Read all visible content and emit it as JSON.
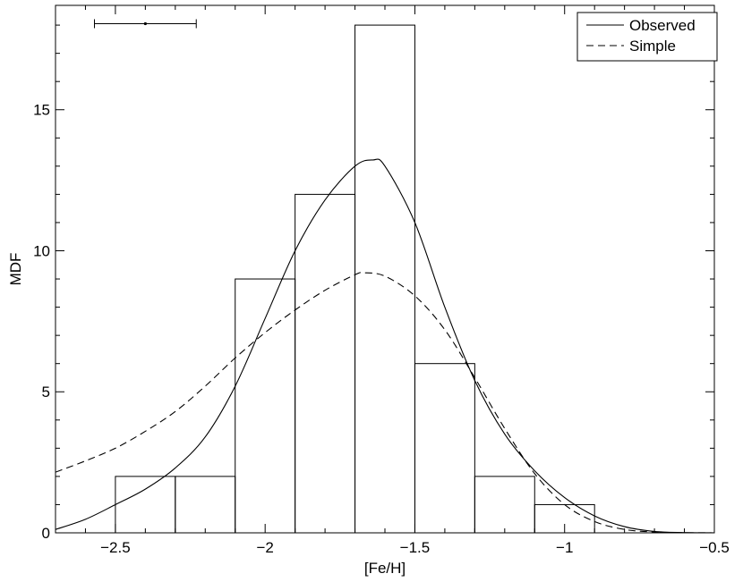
{
  "chart_data": {
    "type": "bar",
    "title": "",
    "xlabel": "[Fe/H]",
    "ylabel": "MDF",
    "xlim": [
      -2.7,
      -0.5
    ],
    "ylim": [
      0,
      18.7
    ],
    "grid": false,
    "legend_position": "top-right",
    "x_major_ticks": [
      -2.5,
      -2.0,
      -1.5,
      -1.0,
      -0.5
    ],
    "x_tick_labels": [
      "−2.5",
      "−2",
      "−1.5",
      "−1",
      "−0.5"
    ],
    "y_major_ticks": [
      0,
      5,
      10,
      15
    ],
    "y_tick_labels": [
      "0",
      "5",
      "10",
      "15"
    ],
    "histogram": {
      "bins": [
        {
          "x0": -2.5,
          "x1": -2.3,
          "count": 2
        },
        {
          "x0": -2.3,
          "x1": -2.1,
          "count": 2
        },
        {
          "x0": -2.1,
          "x1": -1.9,
          "count": 9
        },
        {
          "x0": -1.9,
          "x1": -1.7,
          "count": 12
        },
        {
          "x0": -1.7,
          "x1": -1.5,
          "count": 18
        },
        {
          "x0": -1.5,
          "x1": -1.3,
          "count": 6
        },
        {
          "x0": -1.3,
          "x1": -1.1,
          "count": 2
        },
        {
          "x0": -1.1,
          "x1": -0.9,
          "count": 1
        }
      ]
    },
    "series": [
      {
        "name": "Observed",
        "style": "solid",
        "points": [
          [
            -2.7,
            0.12
          ],
          [
            -2.6,
            0.48
          ],
          [
            -2.5,
            1.0
          ],
          [
            -2.4,
            1.55
          ],
          [
            -2.3,
            2.3
          ],
          [
            -2.2,
            3.4
          ],
          [
            -2.1,
            5.2
          ],
          [
            -2.0,
            7.6
          ],
          [
            -1.9,
            10.0
          ],
          [
            -1.8,
            11.8
          ],
          [
            -1.7,
            13.0
          ],
          [
            -1.64,
            13.22
          ],
          [
            -1.6,
            13.0
          ],
          [
            -1.5,
            11.0
          ],
          [
            -1.4,
            8.0
          ],
          [
            -1.3,
            5.4
          ],
          [
            -1.2,
            3.5
          ],
          [
            -1.1,
            2.2
          ],
          [
            -1.0,
            1.25
          ],
          [
            -0.9,
            0.6
          ],
          [
            -0.8,
            0.22
          ],
          [
            -0.7,
            0.05
          ],
          [
            -0.6,
            0.01
          ],
          [
            -0.5,
            0.0
          ]
        ]
      },
      {
        "name": "Simple",
        "style": "dashed",
        "points": [
          [
            -2.7,
            2.15
          ],
          [
            -2.6,
            2.55
          ],
          [
            -2.5,
            3.0
          ],
          [
            -2.4,
            3.6
          ],
          [
            -2.3,
            4.3
          ],
          [
            -2.2,
            5.2
          ],
          [
            -2.1,
            6.2
          ],
          [
            -2.0,
            7.1
          ],
          [
            -1.9,
            7.9
          ],
          [
            -1.8,
            8.6
          ],
          [
            -1.7,
            9.15
          ],
          [
            -1.67,
            9.22
          ],
          [
            -1.6,
            9.1
          ],
          [
            -1.5,
            8.4
          ],
          [
            -1.4,
            7.2
          ],
          [
            -1.3,
            5.5
          ],
          [
            -1.2,
            3.7
          ],
          [
            -1.1,
            2.1
          ],
          [
            -1.0,
            1.0
          ],
          [
            -0.9,
            0.4
          ],
          [
            -0.8,
            0.12
          ],
          [
            -0.7,
            0.03
          ],
          [
            -0.6,
            0.005
          ],
          [
            -0.5,
            0.0
          ]
        ]
      }
    ],
    "error_bar": {
      "x": -2.4,
      "y": 18.05,
      "xerr": 0.17
    }
  }
}
